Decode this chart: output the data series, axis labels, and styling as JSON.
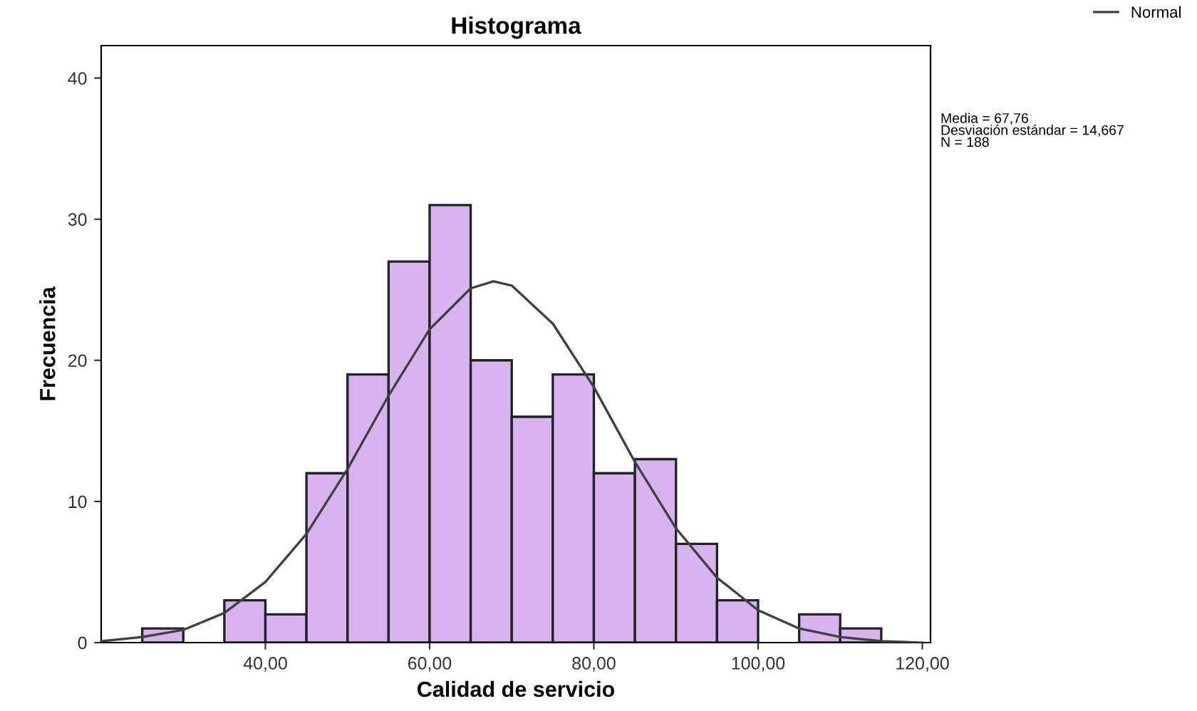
{
  "chart_data": {
    "type": "histogram",
    "title": "Histograma",
    "xlabel": "Calidad de servicio",
    "ylabel": "Frecuencia",
    "bins": [
      25,
      30,
      35,
      40,
      45,
      50,
      55,
      60,
      65,
      70,
      75,
      80,
      85,
      90,
      95,
      100,
      105,
      110,
      115
    ],
    "values": [
      1,
      0,
      3,
      2,
      12,
      19,
      27,
      31,
      20,
      16,
      19,
      12,
      13,
      7,
      3,
      0,
      2,
      1
    ],
    "color": "#d7b4ef",
    "series": [
      {
        "name": "Normal",
        "type": "line",
        "color": "#404040",
        "x": [
          20,
          25,
          30,
          35,
          40,
          45,
          50,
          55,
          60,
          65,
          67.76,
          70,
          75,
          80,
          85,
          90,
          95,
          100,
          105,
          110,
          115,
          120
        ],
        "values": [
          0.1,
          0.4,
          0.9,
          2.1,
          4.3,
          7.7,
          12.3,
          17.5,
          22.2,
          25.1,
          25.6,
          25.3,
          22.6,
          18.1,
          12.8,
          8.1,
          4.6,
          2.3,
          1.0,
          0.4,
          0.1,
          0.0
        ]
      }
    ],
    "xlim": [
      20,
      121
    ],
    "ylim": [
      0,
      42.3
    ],
    "xticks": [
      {
        "value": 40,
        "label": "40,00"
      },
      {
        "value": 60,
        "label": "60,00"
      },
      {
        "value": 80,
        "label": "80,00"
      },
      {
        "value": 100,
        "label": "100,00"
      },
      {
        "value": 120,
        "label": "120,00"
      }
    ],
    "yticks": [
      0,
      10,
      20,
      30,
      40
    ],
    "grid": false,
    "legend": "top right",
    "annotations": [
      "Media = 67,76\nDesviación estándar = 14,667\nN = 188"
    ]
  }
}
